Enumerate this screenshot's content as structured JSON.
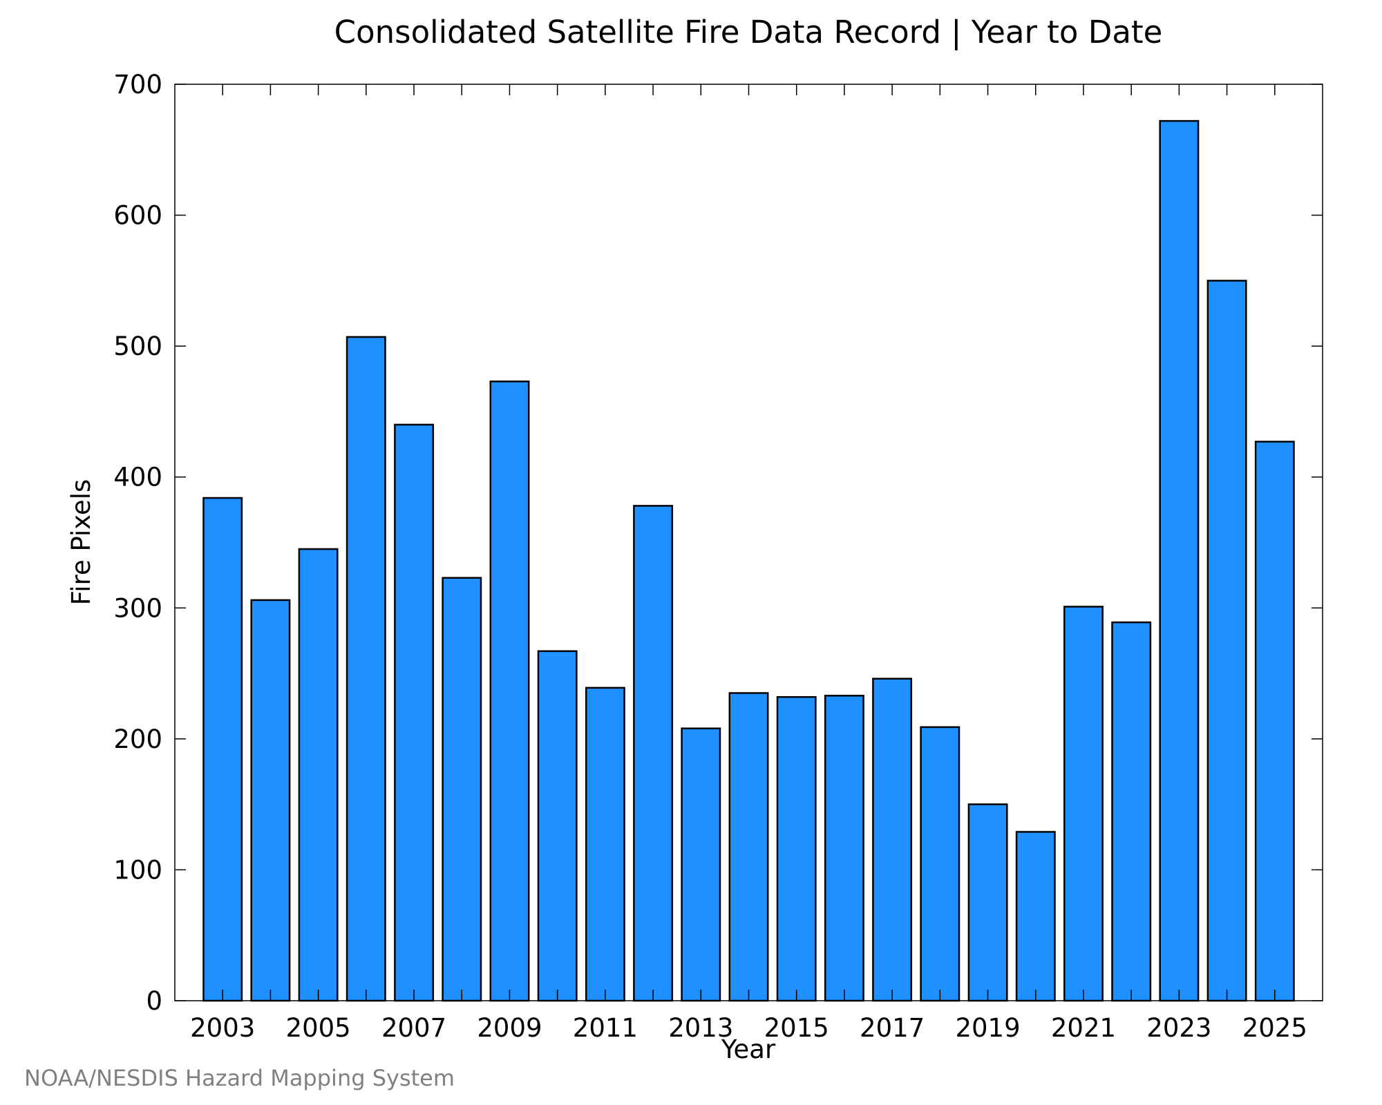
{
  "chart_data": {
    "type": "bar",
    "title": "Consolidated Satellite Fire Data Record | Year to Date",
    "xlabel": "Year",
    "ylabel": "Fire Pixels",
    "x": [
      2003,
      2004,
      2005,
      2006,
      2007,
      2008,
      2009,
      2010,
      2011,
      2012,
      2013,
      2014,
      2015,
      2016,
      2017,
      2018,
      2019,
      2020,
      2021,
      2022,
      2023,
      2024,
      2025
    ],
    "values": [
      384,
      306,
      345,
      507,
      440,
      323,
      473,
      267,
      239,
      378,
      208,
      235,
      232,
      233,
      246,
      209,
      150,
      129,
      301,
      289,
      672,
      550,
      427
    ],
    "ylim": [
      0,
      700
    ],
    "xlim": [
      2002.0,
      2026.0
    ],
    "yticks": [
      0,
      100,
      200,
      300,
      400,
      500,
      600,
      700
    ],
    "xtick_labels": [
      "2003",
      "2005",
      "2007",
      "2009",
      "2011",
      "2013",
      "2015",
      "2017",
      "2019",
      "2021",
      "2023",
      "2025"
    ],
    "grid": false,
    "legend": "none",
    "bar_color": "#1e90ff",
    "edge_color": "#000000"
  },
  "footer": {
    "credit": "NOAA/NESDIS Hazard Mapping System"
  }
}
